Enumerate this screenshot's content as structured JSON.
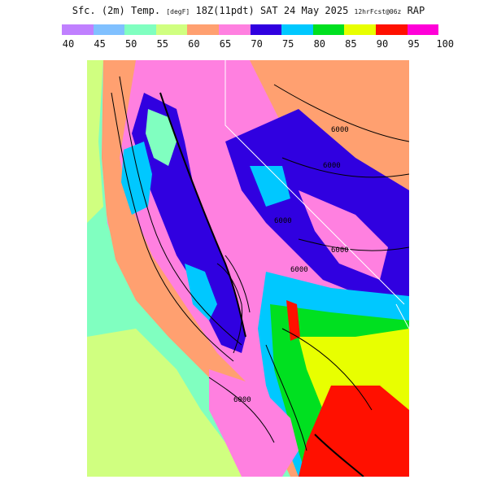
{
  "title": {
    "main": "Sfc. (2m) Temp.",
    "units": "[degF]",
    "valid": "18Z(11pdt) SAT 24 May 2025",
    "fcst": "12hrFcst@06z",
    "model": "RAP"
  },
  "legend": {
    "ticks": [
      "40",
      "45",
      "50",
      "55",
      "60",
      "65",
      "70",
      "75",
      "80",
      "85",
      "90",
      "95",
      "100"
    ],
    "colors": [
      "#c080ff",
      "#80c0ff",
      "#80ffc0",
      "#d0ff80",
      "#ffa070",
      "#ff80e0",
      "#3000e0",
      "#00c8ff",
      "#00e020",
      "#e8ff00",
      "#ff1000",
      "#ff00d8"
    ]
  },
  "map": {
    "region": "California and Nevada",
    "field": "2m temperature shading with contour lines",
    "contour_labels": [
      "6000",
      "6000",
      "6000",
      "6000",
      "6000",
      "6000"
    ]
  }
}
